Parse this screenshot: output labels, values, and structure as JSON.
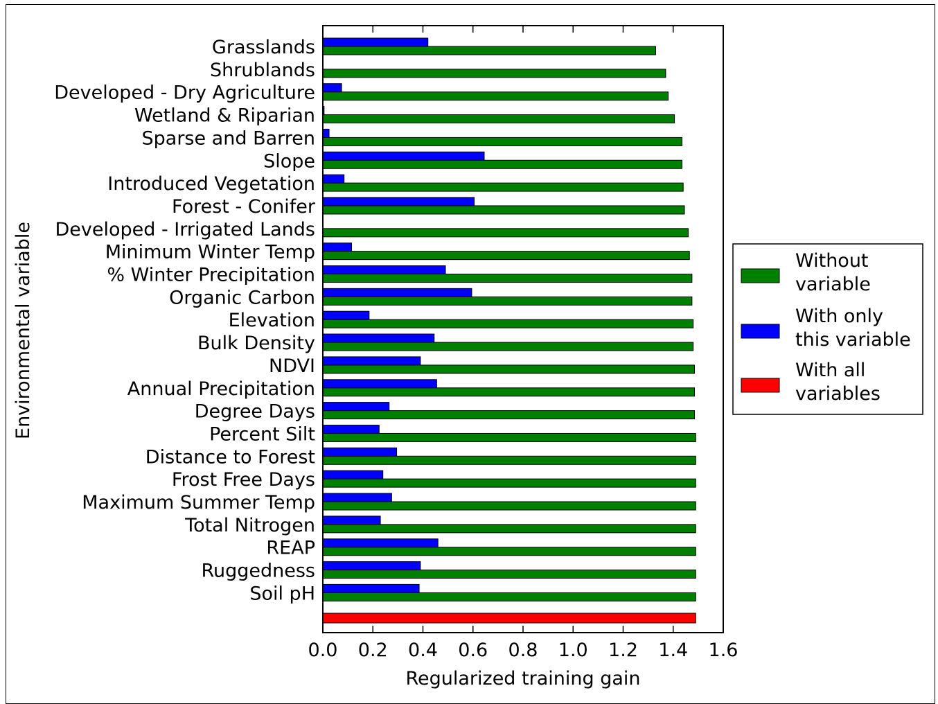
{
  "chart_data": {
    "type": "bar",
    "orientation": "horizontal",
    "xlabel": "Regularized training gain",
    "ylabel": "Environmental variable",
    "xlim": [
      0,
      1.6
    ],
    "xticks": [
      "0.0",
      "0.2",
      "0.4",
      "0.6",
      "0.8",
      "1.0",
      "1.2",
      "1.4",
      "1.6"
    ],
    "grid": false,
    "legend_position": "right",
    "categories": [
      "Grasslands",
      "Shrublands",
      "Developed - Dry Agriculture",
      "Wetland & Riparian",
      "Sparse and Barren",
      "Slope",
      "Introduced Vegetation",
      "Forest - Conifer",
      "Developed - Irrigated Lands",
      "Minimum Winter Temp",
      "% Winter Precipitation",
      "Organic Carbon",
      "Elevation",
      "Bulk Density",
      "NDVI",
      "Annual Precipitation",
      "Degree Days",
      "Percent Silt",
      "Distance to Forest",
      "Frost Free Days",
      "Maximum Summer Temp",
      "Total Nitrogen",
      "REAP",
      "Ruggedness",
      "Soil pH"
    ],
    "series": [
      {
        "name": "Without variable",
        "color": "#008000",
        "values": [
          1.33,
          1.37,
          1.38,
          1.405,
          1.435,
          1.435,
          1.44,
          1.445,
          1.46,
          1.465,
          1.475,
          1.475,
          1.48,
          1.48,
          1.485,
          1.485,
          1.485,
          1.49,
          1.49,
          1.49,
          1.49,
          1.49,
          1.49,
          1.49,
          1.49
        ]
      },
      {
        "name": "With only this variable",
        "color": "#0000ff",
        "values": [
          0.42,
          0.0,
          0.075,
          0.005,
          0.025,
          0.645,
          0.085,
          0.605,
          0.0,
          0.115,
          0.49,
          0.595,
          0.185,
          0.445,
          0.39,
          0.455,
          0.265,
          0.225,
          0.295,
          0.24,
          0.275,
          0.23,
          0.46,
          0.39,
          0.385
        ]
      }
    ],
    "all_variables": {
      "name": "With all variables",
      "color": "#ff0000",
      "value": 1.49
    },
    "legend": [
      {
        "line1": "Without",
        "line2": "variable",
        "color": "#008000"
      },
      {
        "line1": "With only",
        "line2": "this variable",
        "color": "#0000ff"
      },
      {
        "line1": "With all",
        "line2": "variables",
        "color": "#ff0000"
      }
    ]
  }
}
